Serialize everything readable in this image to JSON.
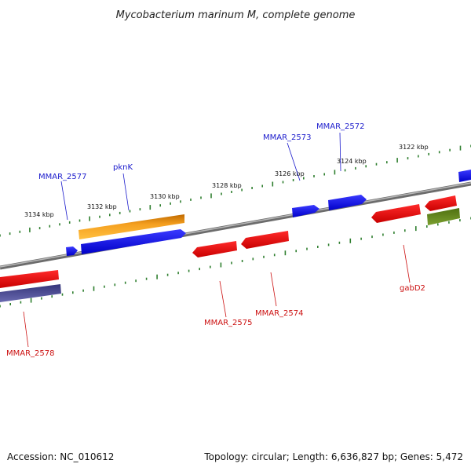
{
  "title": "Mycobacterium marinum M, complete genome",
  "footer": {
    "accession": "Accession: NC_010612",
    "summary": "Topology: circular; Length: 6,636,827 bp; Genes: 5,472"
  },
  "colors": {
    "forward_gene": "#1010ee",
    "reverse_gene": "#ee1010",
    "orange_gene": "#f0a020",
    "olive_gene": "#6b8e23",
    "navy_gene": "#4b4b8f",
    "tick": "#2f7f2f",
    "backbone": "#8a8a8a"
  },
  "ticks": [
    "3122 kbp",
    "3124 kbp",
    "3126 kbp",
    "3128 kbp",
    "3130 kbp",
    "3132 kbp",
    "3134 kbp"
  ],
  "labels": {
    "forward": [
      "MMAR_2572",
      "MMAR_2573",
      "pknK",
      "MMAR_2577"
    ],
    "reverse": [
      "gabD2",
      "MMAR_2574",
      "MMAR_2575",
      "MMAR_2578"
    ]
  }
}
